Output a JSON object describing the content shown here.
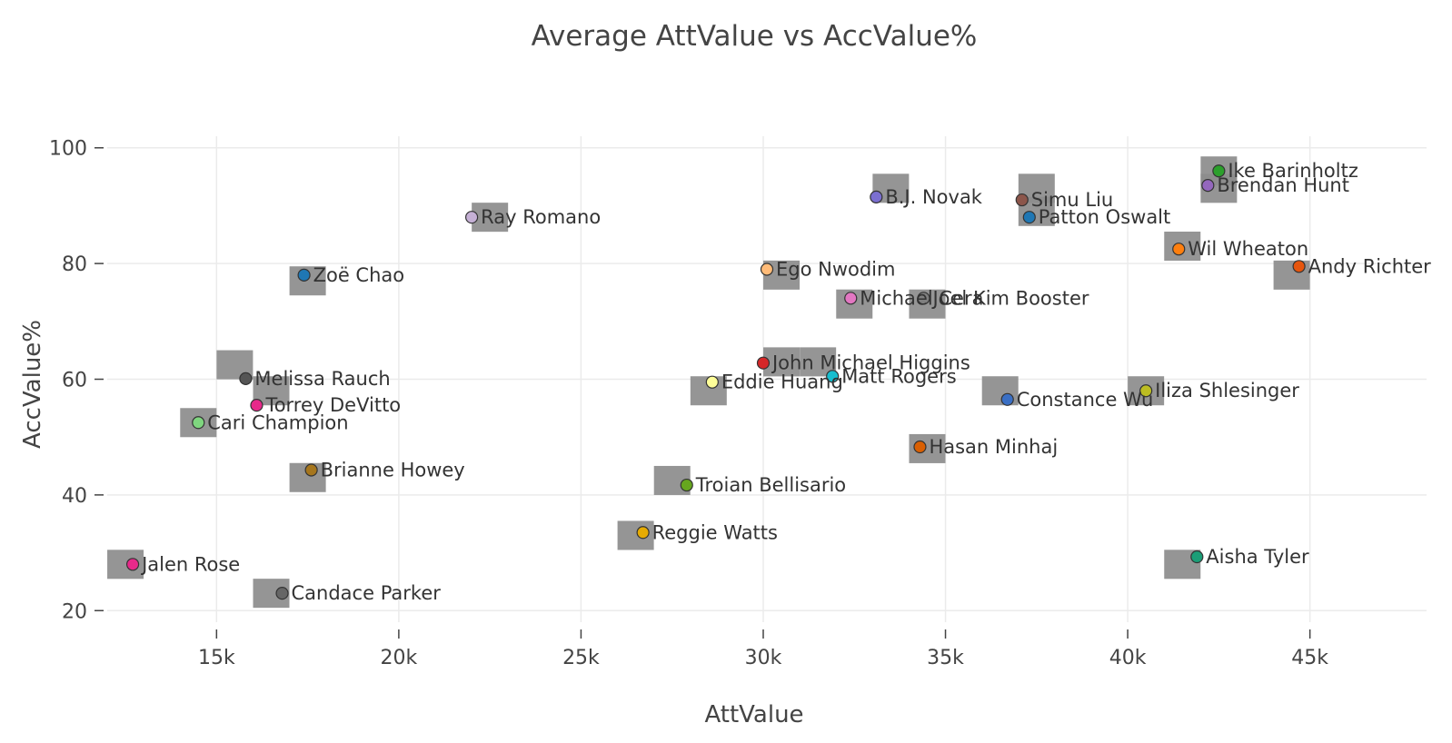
{
  "chart_data": {
    "type": "scatter",
    "title": "Average AttValue vs AccValue%",
    "xlabel": "AttValue",
    "ylabel": "AccValue%",
    "xlim": [
      12000,
      48200
    ],
    "ylim": [
      18,
      102
    ],
    "xticks": [
      15000,
      20000,
      25000,
      30000,
      35000,
      40000,
      45000
    ],
    "xtick_labels": [
      "15k",
      "20k",
      "25k",
      "30k",
      "35k",
      "40k",
      "45k"
    ],
    "yticks": [
      20,
      40,
      60,
      80,
      100
    ],
    "ytick_labels": [
      "20",
      "40",
      "60",
      "80",
      "100"
    ],
    "grid": true,
    "legend": "none",
    "points": [
      {
        "name": "Ike Barinholtz",
        "x": 42500,
        "y": 96,
        "color": "#2ca02c"
      },
      {
        "name": "Brendan Hunt",
        "x": 42200,
        "y": 93.5,
        "color": "#9467bd"
      },
      {
        "name": "B.J. Novak",
        "x": 33100,
        "y": 91.5,
        "color": "#7b6fd0"
      },
      {
        "name": "Simu Liu",
        "x": 37100,
        "y": 91,
        "color": "#8c564b"
      },
      {
        "name": "Ray Romano",
        "x": 22000,
        "y": 88,
        "color": "#c5b0d5"
      },
      {
        "name": "Patton Oswalt",
        "x": 37300,
        "y": 88,
        "color": "#1f77b4"
      },
      {
        "name": "Wil Wheaton",
        "x": 41400,
        "y": 82.5,
        "color": "#ff7f0e"
      },
      {
        "name": "Andy Richter",
        "x": 44700,
        "y": 79.5,
        "color": "#e6550d"
      },
      {
        "name": "Ego Nwodim",
        "x": 30100,
        "y": 79,
        "color": "#ffbb78"
      },
      {
        "name": "Zoë Chao",
        "x": 17400,
        "y": 78,
        "color": "#1f77b4"
      },
      {
        "name": "Michael Cera",
        "x": 32400,
        "y": 74,
        "color": "#e377c2"
      },
      {
        "name": "Joel Kim Booster",
        "x": 34400,
        "y": 74,
        "color": "#7f7f7f"
      },
      {
        "name": "John Michael Higgins",
        "x": 30000,
        "y": 62.8,
        "color": "#d62728"
      },
      {
        "name": "Matt Rogers",
        "x": 31900,
        "y": 60.5,
        "color": "#17becf"
      },
      {
        "name": "Melissa Rauch",
        "x": 15800,
        "y": 60.1,
        "color": "#555555"
      },
      {
        "name": "Eddie Huang",
        "x": 28600,
        "y": 59.5,
        "color": "#ffff99"
      },
      {
        "name": "Iliza Shlesinger",
        "x": 40500,
        "y": 58,
        "color": "#bcbd22"
      },
      {
        "name": "Constance Wu",
        "x": 36700,
        "y": 56.5,
        "color": "#3a6fc4"
      },
      {
        "name": "Torrey DeVitto",
        "x": 16100,
        "y": 55.5,
        "color": "#e7298a"
      },
      {
        "name": "Cari Champion",
        "x": 14500,
        "y": 52.5,
        "color": "#7fd67f"
      },
      {
        "name": "Hasan Minhaj",
        "x": 34300,
        "y": 48.3,
        "color": "#d95f02"
      },
      {
        "name": "Brianne Howey",
        "x": 17600,
        "y": 44.3,
        "color": "#a6761d"
      },
      {
        "name": "Troian Bellisario",
        "x": 27900,
        "y": 41.7,
        "color": "#66a61e"
      },
      {
        "name": "Reggie Watts",
        "x": 26700,
        "y": 33.5,
        "color": "#e6ab02"
      },
      {
        "name": "Aisha Tyler",
        "x": 41900,
        "y": 29.3,
        "color": "#1b9e77"
      },
      {
        "name": "Jalen Rose",
        "x": 12700,
        "y": 28,
        "color": "#e7298a"
      },
      {
        "name": "Candace Parker",
        "x": 16800,
        "y": 23,
        "color": "#666666"
      }
    ],
    "highlight_markers": [
      {
        "x": 42500,
        "y": 96
      },
      {
        "x": 42500,
        "y": 93
      },
      {
        "x": 33500,
        "y": 93
      },
      {
        "x": 37500,
        "y": 93
      },
      {
        "x": 37500,
        "y": 89
      },
      {
        "x": 22500,
        "y": 88
      },
      {
        "x": 41500,
        "y": 83
      },
      {
        "x": 44500,
        "y": 78
      },
      {
        "x": 30500,
        "y": 78
      },
      {
        "x": 17500,
        "y": 77
      },
      {
        "x": 32500,
        "y": 73
      },
      {
        "x": 34500,
        "y": 73
      },
      {
        "x": 30500,
        "y": 63
      },
      {
        "x": 31500,
        "y": 63
      },
      {
        "x": 15500,
        "y": 62.5
      },
      {
        "x": 16500,
        "y": 58
      },
      {
        "x": 28500,
        "y": 58
      },
      {
        "x": 36500,
        "y": 58
      },
      {
        "x": 40500,
        "y": 58
      },
      {
        "x": 14500,
        "y": 52.5
      },
      {
        "x": 34500,
        "y": 48
      },
      {
        "x": 17500,
        "y": 43
      },
      {
        "x": 27500,
        "y": 42.5
      },
      {
        "x": 26500,
        "y": 33
      },
      {
        "x": 41500,
        "y": 28
      },
      {
        "x": 12500,
        "y": 28
      },
      {
        "x": 16500,
        "y": 23
      }
    ]
  }
}
